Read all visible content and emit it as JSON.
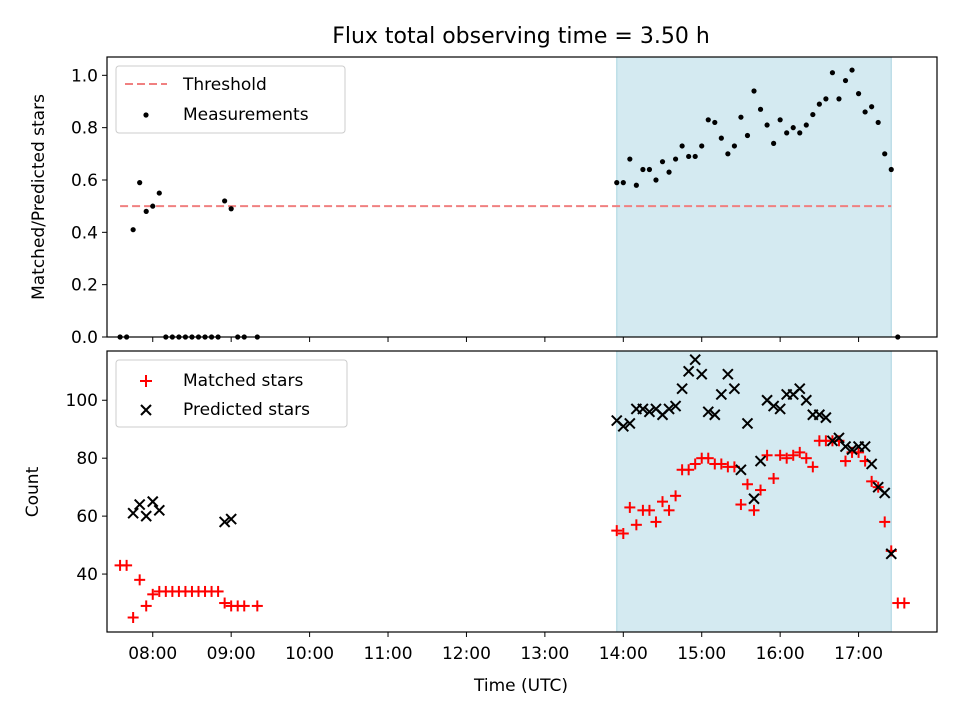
{
  "chart_data": [
    {
      "type": "scatter",
      "title": "Flux total observing time = 3.50 h",
      "xlabel": "",
      "ylabel": "Matched/Predicted stars",
      "ylim": [
        0,
        1.07
      ],
      "yticks": [
        "0.0",
        "0.2",
        "0.4",
        "0.6",
        "0.8",
        "1.0"
      ],
      "xlim": [
        "07:25",
        "18:00"
      ],
      "grid": false,
      "legend_position": "upper-left",
      "shaded_interval": {
        "start": "13:55",
        "end": "17:25",
        "color": "#d4eaf1"
      },
      "threshold": {
        "name": "Threshold",
        "value": 0.5,
        "x_start": "07:35",
        "x_end": "17:25",
        "style": "dashed",
        "color": "#f08080"
      },
      "series": [
        {
          "name": "Measurements",
          "marker": "dot",
          "color": "#000000",
          "points": [
            [
              "07:35",
              0.0
            ],
            [
              "07:40",
              0.0
            ],
            [
              "07:45",
              0.41
            ],
            [
              "07:50",
              0.59
            ],
            [
              "07:55",
              0.48
            ],
            [
              "08:00",
              0.5
            ],
            [
              "08:05",
              0.55
            ],
            [
              "08:10",
              0.0
            ],
            [
              "08:15",
              0.0
            ],
            [
              "08:20",
              0.0
            ],
            [
              "08:25",
              0.0
            ],
            [
              "08:30",
              0.0
            ],
            [
              "08:35",
              0.0
            ],
            [
              "08:40",
              0.0
            ],
            [
              "08:45",
              0.0
            ],
            [
              "08:50",
              0.0
            ],
            [
              "08:55",
              0.52
            ],
            [
              "09:00",
              0.49
            ],
            [
              "09:05",
              0.0
            ],
            [
              "09:10",
              0.0
            ],
            [
              "09:20",
              0.0
            ],
            [
              "13:55",
              0.59
            ],
            [
              "14:00",
              0.59
            ],
            [
              "14:05",
              0.68
            ],
            [
              "14:10",
              0.58
            ],
            [
              "14:15",
              0.64
            ],
            [
              "14:20",
              0.64
            ],
            [
              "14:25",
              0.6
            ],
            [
              "14:30",
              0.67
            ],
            [
              "14:35",
              0.63
            ],
            [
              "14:40",
              0.68
            ],
            [
              "14:45",
              0.73
            ],
            [
              "14:50",
              0.69
            ],
            [
              "14:55",
              0.69
            ],
            [
              "15:00",
              0.73
            ],
            [
              "15:05",
              0.83
            ],
            [
              "15:10",
              0.82
            ],
            [
              "15:15",
              0.76
            ],
            [
              "15:20",
              0.7
            ],
            [
              "15:25",
              0.73
            ],
            [
              "15:30",
              0.84
            ],
            [
              "15:35",
              0.77
            ],
            [
              "15:40",
              0.94
            ],
            [
              "15:45",
              0.87
            ],
            [
              "15:50",
              0.81
            ],
            [
              "15:55",
              0.74
            ],
            [
              "16:00",
              0.83
            ],
            [
              "16:05",
              0.78
            ],
            [
              "16:10",
              0.8
            ],
            [
              "16:15",
              0.78
            ],
            [
              "16:20",
              0.81
            ],
            [
              "16:25",
              0.85
            ],
            [
              "16:30",
              0.89
            ],
            [
              "16:35",
              0.91
            ],
            [
              "16:40",
              1.01
            ],
            [
              "16:45",
              0.91
            ],
            [
              "16:50",
              0.98
            ],
            [
              "16:55",
              1.02
            ],
            [
              "17:00",
              0.93
            ],
            [
              "17:05",
              0.86
            ],
            [
              "17:10",
              0.88
            ],
            [
              "17:15",
              0.82
            ],
            [
              "17:20",
              0.7
            ],
            [
              "17:25",
              0.64
            ],
            [
              "17:30",
              0.0
            ]
          ]
        }
      ]
    },
    {
      "type": "scatter",
      "title": "",
      "xlabel": "Time (UTC)",
      "ylabel": "Count",
      "ylim": [
        20,
        117
      ],
      "yticks": [
        "40",
        "60",
        "80",
        "100"
      ],
      "xlim": [
        "07:25",
        "18:00"
      ],
      "xticks": [
        "08:00",
        "09:00",
        "10:00",
        "11:00",
        "12:00",
        "13:00",
        "14:00",
        "15:00",
        "16:00",
        "17:00"
      ],
      "grid": false,
      "legend_position": "upper-left",
      "shaded_interval": {
        "start": "13:55",
        "end": "17:25",
        "color": "#d4eaf1"
      },
      "series": [
        {
          "name": "Matched stars",
          "marker": "plus",
          "color": "#ff0000",
          "points": [
            [
              "07:35",
              43
            ],
            [
              "07:40",
              43
            ],
            [
              "07:45",
              25
            ],
            [
              "07:50",
              38
            ],
            [
              "07:55",
              29
            ],
            [
              "08:00",
              33
            ],
            [
              "08:05",
              34
            ],
            [
              "08:10",
              34
            ],
            [
              "08:15",
              34
            ],
            [
              "08:20",
              34
            ],
            [
              "08:25",
              34
            ],
            [
              "08:30",
              34
            ],
            [
              "08:35",
              34
            ],
            [
              "08:40",
              34
            ],
            [
              "08:45",
              34
            ],
            [
              "08:50",
              34
            ],
            [
              "08:55",
              30
            ],
            [
              "09:00",
              29
            ],
            [
              "09:05",
              29
            ],
            [
              "09:10",
              29
            ],
            [
              "09:20",
              29
            ],
            [
              "13:55",
              55
            ],
            [
              "14:00",
              54
            ],
            [
              "14:05",
              63
            ],
            [
              "14:10",
              57
            ],
            [
              "14:15",
              62
            ],
            [
              "14:20",
              62
            ],
            [
              "14:25",
              58
            ],
            [
              "14:30",
              65
            ],
            [
              "14:35",
              62
            ],
            [
              "14:40",
              67
            ],
            [
              "14:45",
              76
            ],
            [
              "14:50",
              76
            ],
            [
              "14:55",
              78
            ],
            [
              "15:00",
              80
            ],
            [
              "15:05",
              80
            ],
            [
              "15:10",
              78
            ],
            [
              "15:15",
              78
            ],
            [
              "15:20",
              77
            ],
            [
              "15:25",
              77
            ],
            [
              "15:30",
              64
            ],
            [
              "15:35",
              71
            ],
            [
              "15:40",
              62
            ],
            [
              "15:45",
              69
            ],
            [
              "15:50",
              81
            ],
            [
              "15:55",
              73
            ],
            [
              "16:00",
              81
            ],
            [
              "16:05",
              80
            ],
            [
              "16:10",
              81
            ],
            [
              "16:15",
              82
            ],
            [
              "16:20",
              80
            ],
            [
              "16:25",
              77
            ],
            [
              "16:30",
              86
            ],
            [
              "16:35",
              86
            ],
            [
              "16:40",
              86
            ],
            [
              "16:45",
              86
            ],
            [
              "16:50",
              79
            ],
            [
              "16:55",
              82
            ],
            [
              "17:00",
              82
            ],
            [
              "17:05",
              79
            ],
            [
              "17:10",
              72
            ],
            [
              "17:15",
              70
            ],
            [
              "17:20",
              58
            ],
            [
              "17:25",
              48
            ],
            [
              "17:30",
              30
            ],
            [
              "17:35",
              30
            ]
          ]
        },
        {
          "name": "Predicted stars",
          "marker": "x",
          "color": "#000000",
          "points": [
            [
              "07:45",
              61
            ],
            [
              "07:50",
              64
            ],
            [
              "07:55",
              60
            ],
            [
              "08:00",
              65
            ],
            [
              "08:05",
              62
            ],
            [
              "08:55",
              58
            ],
            [
              "09:00",
              59
            ],
            [
              "13:55",
              93
            ],
            [
              "14:00",
              91
            ],
            [
              "14:05",
              92
            ],
            [
              "14:10",
              97
            ],
            [
              "14:15",
              97
            ],
            [
              "14:20",
              96
            ],
            [
              "14:25",
              97
            ],
            [
              "14:30",
              95
            ],
            [
              "14:35",
              97
            ],
            [
              "14:40",
              98
            ],
            [
              "14:45",
              104
            ],
            [
              "14:50",
              110
            ],
            [
              "14:55",
              114
            ],
            [
              "15:00",
              109
            ],
            [
              "15:05",
              96
            ],
            [
              "15:10",
              95
            ],
            [
              "15:15",
              102
            ],
            [
              "15:20",
              109
            ],
            [
              "15:25",
              104
            ],
            [
              "15:30",
              76
            ],
            [
              "15:35",
              92
            ],
            [
              "15:40",
              66
            ],
            [
              "15:45",
              79
            ],
            [
              "15:50",
              100
            ],
            [
              "15:55",
              98
            ],
            [
              "16:00",
              97
            ],
            [
              "16:05",
              102
            ],
            [
              "16:10",
              102
            ],
            [
              "16:15",
              104
            ],
            [
              "16:20",
              100
            ],
            [
              "16:25",
              95
            ],
            [
              "16:30",
              95
            ],
            [
              "16:35",
              94
            ],
            [
              "16:40",
              86
            ],
            [
              "16:45",
              87
            ],
            [
              "16:50",
              84
            ],
            [
              "16:55",
              83
            ],
            [
              "17:00",
              84
            ],
            [
              "17:05",
              84
            ],
            [
              "17:10",
              78
            ],
            [
              "17:15",
              70
            ],
            [
              "17:20",
              68
            ],
            [
              "17:25",
              47
            ]
          ]
        }
      ]
    }
  ]
}
